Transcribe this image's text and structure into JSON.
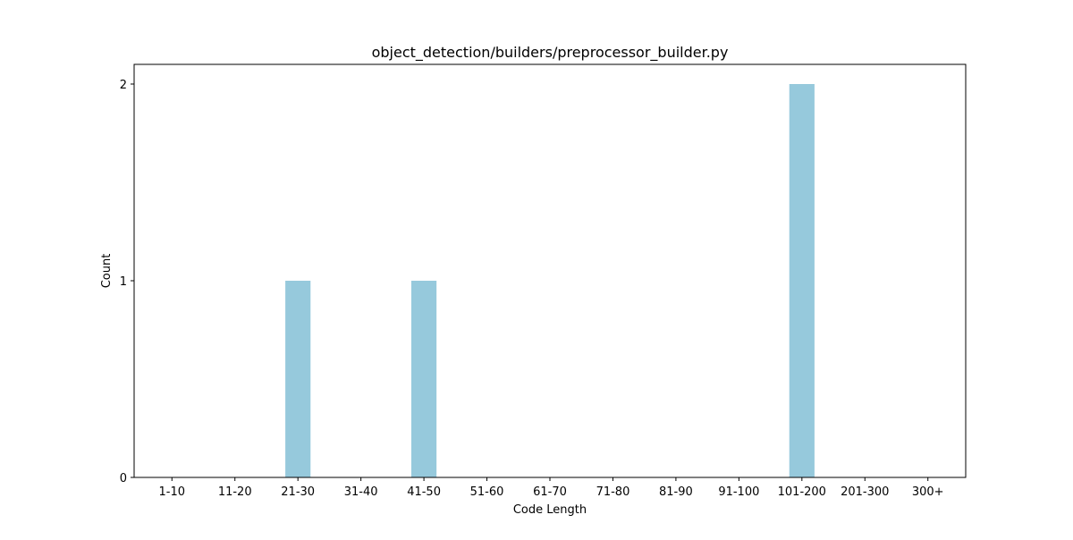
{
  "chart_data": {
    "type": "bar",
    "title": "object_detection/builders/preprocessor_builder.py",
    "xlabel": "Code Length",
    "ylabel": "Count",
    "categories": [
      "1-10",
      "11-20",
      "21-30",
      "31-40",
      "41-50",
      "51-60",
      "61-70",
      "71-80",
      "81-90",
      "91-100",
      "101-200",
      "201-300",
      "300+"
    ],
    "values": [
      0,
      0,
      1,
      0,
      1,
      0,
      0,
      0,
      0,
      0,
      2,
      0,
      0
    ],
    "yticks": [
      0,
      1,
      2
    ],
    "ylim": [
      0,
      2.1
    ],
    "grid": false,
    "legend": "none",
    "bar_color": "#96c9dc"
  }
}
